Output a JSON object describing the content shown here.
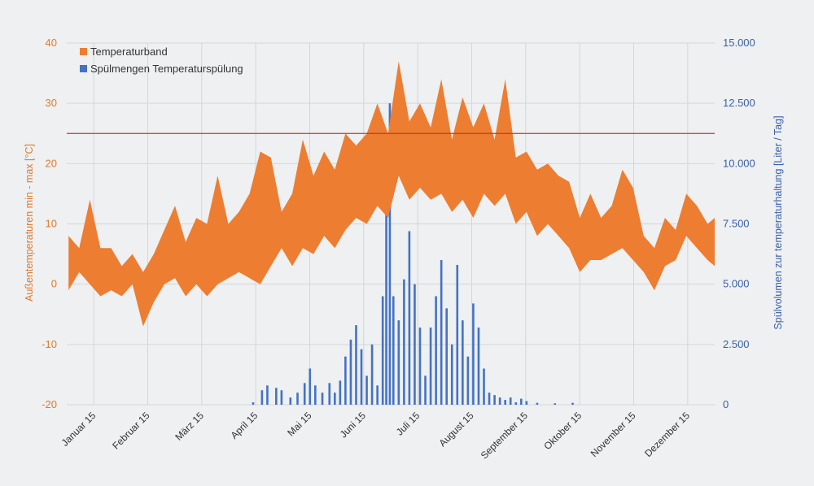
{
  "chart_data": {
    "type": "area",
    "title": "",
    "x_categories": [
      "Januar 15",
      "Februar 15",
      "März 15",
      "April 15",
      "Mai 15",
      "Juni 15",
      "Juli 15",
      "August 15",
      "September 15",
      "Oktober 15",
      "November 15",
      "Dezember 15"
    ],
    "left_axis": {
      "label": "Außentemperaturen min - max [°C]",
      "ticks": [
        "40",
        "30",
        "20",
        "10",
        "0",
        "-10",
        "-20"
      ],
      "range": [
        -20,
        40
      ]
    },
    "right_axis": {
      "label": "Spülvolumen zur temperaturhaltung [Liter / Tag]",
      "ticks": [
        "15.000",
        "12.500",
        "10.000",
        "7.500",
        "5.000",
        "2.500",
        "0"
      ],
      "range": [
        0,
        15000
      ]
    },
    "threshold_line": {
      "value": 25,
      "color": "#c0392b"
    },
    "legend": {
      "position": "top-left",
      "items": [
        {
          "label": "Temperaturband",
          "color": "#ed7d31"
        },
        {
          "label": "Spülmengen Temperaturspülung",
          "color": "#4472c4"
        }
      ]
    },
    "series": [
      {
        "name": "Temperaturband",
        "axis": "left",
        "kind": "band",
        "color": "#ed7d31",
        "points": [
          {
            "day": 1,
            "min": -1,
            "max": 8
          },
          {
            "day": 7,
            "min": 2,
            "max": 6
          },
          {
            "day": 13,
            "min": 0,
            "max": 14
          },
          {
            "day": 19,
            "min": -2,
            "max": 6
          },
          {
            "day": 25,
            "min": -1,
            "max": 6
          },
          {
            "day": 31,
            "min": -2,
            "max": 3
          },
          {
            "day": 37,
            "min": 0,
            "max": 5
          },
          {
            "day": 43,
            "min": -7,
            "max": 2
          },
          {
            "day": 49,
            "min": -3,
            "max": 5
          },
          {
            "day": 55,
            "min": 0,
            "max": 9
          },
          {
            "day": 61,
            "min": 1,
            "max": 13
          },
          {
            "day": 67,
            "min": -2,
            "max": 7
          },
          {
            "day": 73,
            "min": 0,
            "max": 11
          },
          {
            "day": 79,
            "min": -2,
            "max": 10
          },
          {
            "day": 85,
            "min": 0,
            "max": 18
          },
          {
            "day": 91,
            "min": 1,
            "max": 10
          },
          {
            "day": 97,
            "min": 2,
            "max": 12
          },
          {
            "day": 103,
            "min": 1,
            "max": 15
          },
          {
            "day": 109,
            "min": 0,
            "max": 22
          },
          {
            "day": 115,
            "min": 3,
            "max": 21
          },
          {
            "day": 121,
            "min": 6,
            "max": 12
          },
          {
            "day": 127,
            "min": 3,
            "max": 15
          },
          {
            "day": 133,
            "min": 6,
            "max": 24
          },
          {
            "day": 139,
            "min": 5,
            "max": 18
          },
          {
            "day": 145,
            "min": 8,
            "max": 22
          },
          {
            "day": 151,
            "min": 6,
            "max": 19
          },
          {
            "day": 157,
            "min": 9,
            "max": 25
          },
          {
            "day": 163,
            "min": 11,
            "max": 23
          },
          {
            "day": 169,
            "min": 10,
            "max": 25
          },
          {
            "day": 175,
            "min": 13,
            "max": 30
          },
          {
            "day": 181,
            "min": 11,
            "max": 25
          },
          {
            "day": 187,
            "min": 18,
            "max": 37
          },
          {
            "day": 193,
            "min": 14,
            "max": 27
          },
          {
            "day": 199,
            "min": 16,
            "max": 30
          },
          {
            "day": 205,
            "min": 14,
            "max": 26
          },
          {
            "day": 211,
            "min": 15,
            "max": 34
          },
          {
            "day": 217,
            "min": 12,
            "max": 24
          },
          {
            "day": 223,
            "min": 14,
            "max": 31
          },
          {
            "day": 229,
            "min": 11,
            "max": 26
          },
          {
            "day": 235,
            "min": 15,
            "max": 30
          },
          {
            "day": 241,
            "min": 13,
            "max": 24
          },
          {
            "day": 247,
            "min": 15,
            "max": 34
          },
          {
            "day": 253,
            "min": 10,
            "max": 21
          },
          {
            "day": 259,
            "min": 12,
            "max": 22
          },
          {
            "day": 265,
            "min": 8,
            "max": 19
          },
          {
            "day": 271,
            "min": 10,
            "max": 20
          },
          {
            "day": 277,
            "min": 8,
            "max": 18
          },
          {
            "day": 283,
            "min": 6,
            "max": 17
          },
          {
            "day": 289,
            "min": 2,
            "max": 11
          },
          {
            "day": 295,
            "min": 4,
            "max": 15
          },
          {
            "day": 301,
            "min": 4,
            "max": 11
          },
          {
            "day": 307,
            "min": 5,
            "max": 13
          },
          {
            "day": 313,
            "min": 6,
            "max": 19
          },
          {
            "day": 319,
            "min": 4,
            "max": 16
          },
          {
            "day": 325,
            "min": 2,
            "max": 8
          },
          {
            "day": 331,
            "min": -1,
            "max": 6
          },
          {
            "day": 337,
            "min": 3,
            "max": 11
          },
          {
            "day": 343,
            "min": 4,
            "max": 9
          },
          {
            "day": 349,
            "min": 8,
            "max": 15
          },
          {
            "day": 355,
            "min": 6,
            "max": 13
          },
          {
            "day": 361,
            "min": 4,
            "max": 10
          },
          {
            "day": 365,
            "min": 3,
            "max": 11
          }
        ]
      },
      {
        "name": "Spülmengen Temperaturspülung",
        "axis": "right",
        "kind": "bar",
        "color": "#4472c4",
        "points": [
          {
            "day": 105,
            "value": 100
          },
          {
            "day": 110,
            "value": 600
          },
          {
            "day": 113,
            "value": 800
          },
          {
            "day": 118,
            "value": 700
          },
          {
            "day": 121,
            "value": 600
          },
          {
            "day": 126,
            "value": 300
          },
          {
            "day": 130,
            "value": 500
          },
          {
            "day": 134,
            "value": 900
          },
          {
            "day": 137,
            "value": 1500
          },
          {
            "day": 140,
            "value": 800
          },
          {
            "day": 144,
            "value": 500
          },
          {
            "day": 148,
            "value": 900
          },
          {
            "day": 151,
            "value": 500
          },
          {
            "day": 154,
            "value": 1000
          },
          {
            "day": 157,
            "value": 2000
          },
          {
            "day": 160,
            "value": 2700
          },
          {
            "day": 163,
            "value": 3300
          },
          {
            "day": 166,
            "value": 2300
          },
          {
            "day": 169,
            "value": 1200
          },
          {
            "day": 172,
            "value": 2500
          },
          {
            "day": 175,
            "value": 800
          },
          {
            "day": 178,
            "value": 4500
          },
          {
            "day": 180,
            "value": 9000
          },
          {
            "day": 182,
            "value": 12500
          },
          {
            "day": 184,
            "value": 4500
          },
          {
            "day": 187,
            "value": 3500
          },
          {
            "day": 190,
            "value": 5200
          },
          {
            "day": 193,
            "value": 7200
          },
          {
            "day": 196,
            "value": 5000
          },
          {
            "day": 199,
            "value": 3200
          },
          {
            "day": 202,
            "value": 1200
          },
          {
            "day": 205,
            "value": 3200
          },
          {
            "day": 208,
            "value": 4500
          },
          {
            "day": 211,
            "value": 6000
          },
          {
            "day": 214,
            "value": 4000
          },
          {
            "day": 217,
            "value": 2500
          },
          {
            "day": 220,
            "value": 5800
          },
          {
            "day": 223,
            "value": 3500
          },
          {
            "day": 226,
            "value": 2000
          },
          {
            "day": 229,
            "value": 4200
          },
          {
            "day": 232,
            "value": 3200
          },
          {
            "day": 235,
            "value": 1500
          },
          {
            "day": 238,
            "value": 500
          },
          {
            "day": 241,
            "value": 400
          },
          {
            "day": 244,
            "value": 300
          },
          {
            "day": 247,
            "value": 200
          },
          {
            "day": 250,
            "value": 300
          },
          {
            "day": 253,
            "value": 100
          },
          {
            "day": 256,
            "value": 250
          },
          {
            "day": 259,
            "value": 150
          },
          {
            "day": 265,
            "value": 80
          },
          {
            "day": 275,
            "value": 60
          },
          {
            "day": 285,
            "value": 80
          }
        ]
      }
    ]
  }
}
